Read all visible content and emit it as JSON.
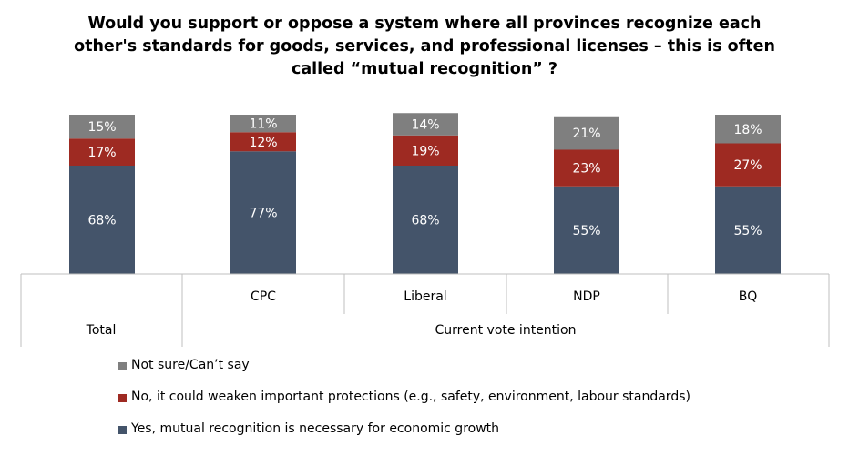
{
  "chart_data": {
    "type": "bar",
    "stacked": true,
    "title_lines": [
      "Would you support or oppose a system where all provinces recognize each",
      "other's standards for goods, services, and professional licenses – this is often",
      "called “mutual recognition” ?"
    ],
    "categories": [
      "",
      "CPC",
      "Liberal",
      "NDP",
      "BQ"
    ],
    "groups": [
      {
        "label": "Total",
        "categories": [
          ""
        ]
      },
      {
        "label": "Current vote intention",
        "categories": [
          "CPC",
          "Liberal",
          "NDP",
          "BQ"
        ]
      }
    ],
    "series": [
      {
        "name": "Yes, mutual recognition is necessary for economic growth",
        "color": "#44546A",
        "values": [
          68,
          77,
          68,
          55,
          55
        ],
        "labels": [
          "68%",
          "77%",
          "68%",
          "55%",
          "55%"
        ]
      },
      {
        "name": "No, it could weaken important protections (e.g., safety, environment, labour standards)",
        "color": "#9E2A22",
        "values": [
          17,
          12,
          19,
          23,
          27
        ],
        "labels": [
          "17%",
          "12%",
          "19%",
          "23%",
          "27%"
        ]
      },
      {
        "name": "Not sure/Can’t say",
        "color": "#7F7F7F",
        "values": [
          15,
          11,
          14,
          21,
          18
        ],
        "labels": [
          "15%",
          "11%",
          "14%",
          "21%",
          "18%"
        ]
      }
    ],
    "legend_order": [
      2,
      1,
      0
    ],
    "ylim": [
      0,
      100
    ],
    "label_color": "#ffffff",
    "axis_color": "#BFBFBF"
  }
}
